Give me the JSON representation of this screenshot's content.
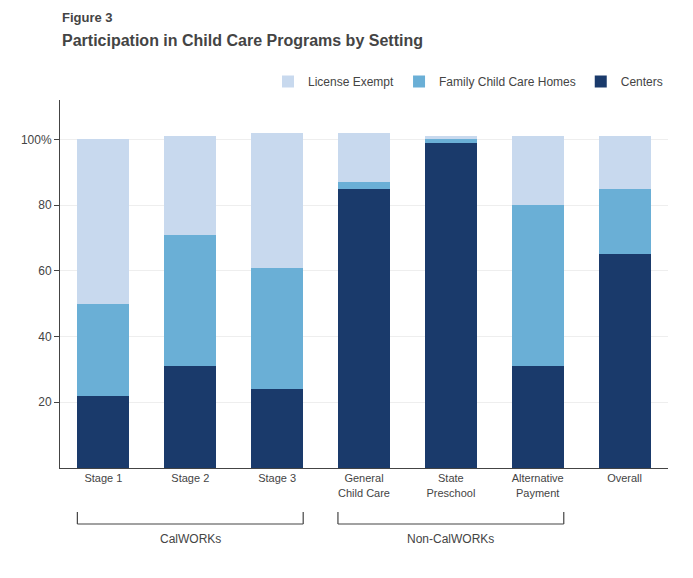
{
  "chart_data": {
    "type": "bar",
    "stacked": true,
    "title": "Figure 3",
    "subtitle": "Participation in Child Care Programs by Setting",
    "categories": [
      "Stage 1",
      "Stage 2",
      "Stage 3",
      "General\nChild Care",
      "State\nPreschool",
      "Alternative\nPayment",
      "Overall"
    ],
    "series": [
      {
        "name": "Centers",
        "color": "#1a3a6b",
        "values": [
          22,
          31,
          24,
          85,
          99,
          31,
          65
        ]
      },
      {
        "name": "Family Child Care Homes",
        "color": "#6aafd6",
        "values": [
          28,
          40,
          37,
          2,
          1,
          49,
          20
        ]
      },
      {
        "name": "License Exempt",
        "color": "#c8d9ee",
        "values": [
          50,
          30,
          41,
          15,
          1,
          21,
          16
        ]
      }
    ],
    "groups": [
      {
        "label": "CalWORKs",
        "categories": [
          "Stage 1",
          "Stage 2",
          "Stage 3"
        ]
      },
      {
        "label": "Non-CalWORKs",
        "categories": [
          "General\nChild Care",
          "State\nPreschool",
          "Alternative\nPayment"
        ]
      }
    ],
    "ylim": [
      0,
      112
    ],
    "yticks": [
      20,
      40,
      60,
      80,
      {
        "value": 100,
        "label": "100%"
      }
    ],
    "grid": true,
    "legend": "top"
  }
}
